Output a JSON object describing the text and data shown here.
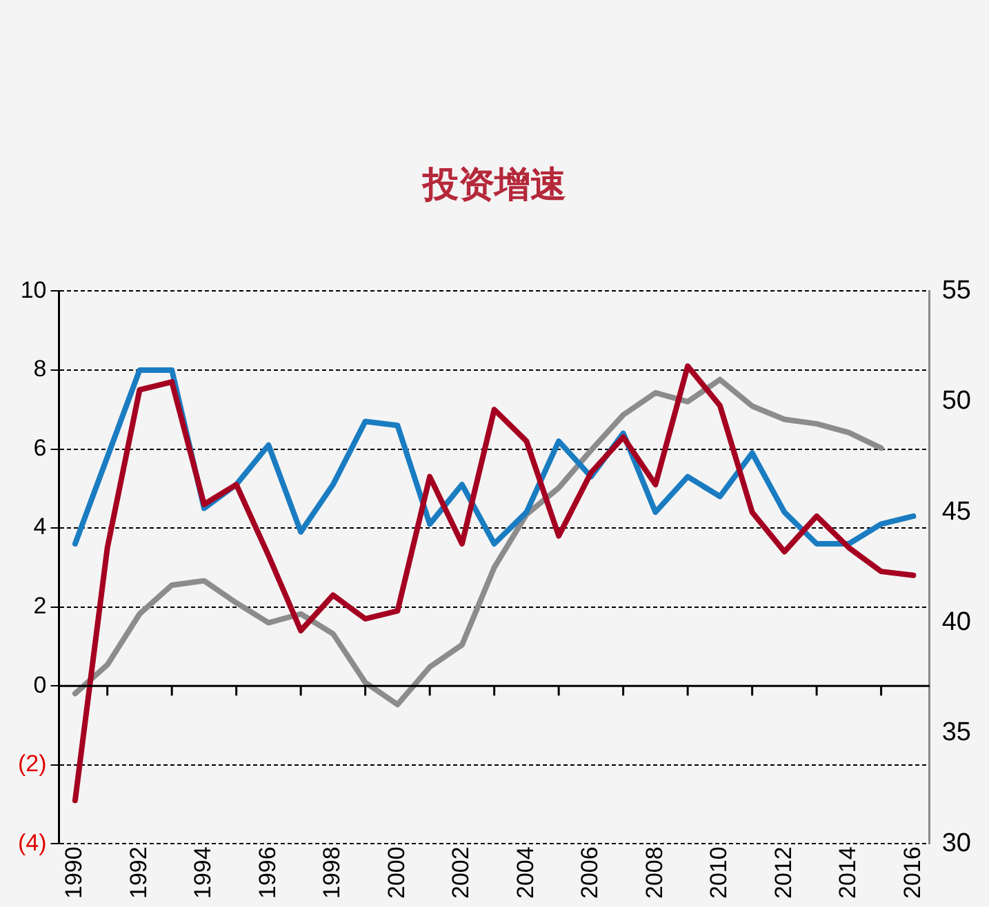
{
  "chart_data": {
    "type": "line",
    "title": "投资增速",
    "categories": [
      "1990",
      null,
      "1992",
      null,
      "1994",
      null,
      "1996",
      null,
      "1998",
      null,
      "2000",
      null,
      "2002",
      null,
      "2004",
      null,
      "2006",
      null,
      "2008",
      null,
      "2010",
      null,
      "2012",
      null,
      "2014",
      null,
      "2016"
    ],
    "series": [
      {
        "color": "#a50021",
        "values": [
          -2.9,
          3.5,
          7.5,
          7.7,
          4.6,
          5.1,
          3.3,
          1.4,
          2.3,
          1.7,
          1.9,
          5.3,
          3.6,
          7.0,
          6.2,
          3.8,
          5.4,
          6.3,
          5.1,
          8.1,
          7.1,
          4.4,
          3.4,
          4.3,
          3.5,
          2.9,
          2.8
        ]
      },
      {
        "color": "#1a7cc1",
        "values": [
          3.6,
          5.8,
          8.0,
          8.0,
          4.5,
          5.1,
          6.1,
          3.9,
          5.1,
          6.7,
          6.6,
          4.1,
          5.1,
          3.6,
          4.4,
          6.2,
          5.3,
          6.4,
          4.4,
          5.3,
          4.8,
          5.9,
          4.4,
          3.6,
          3.6,
          4.1,
          4.3
        ]
      },
      {
        "color": "#8c8c8c",
        "axis": "y2",
        "values": [
          36.8,
          38.1,
          40.4,
          41.7,
          41.9,
          40.9,
          40.0,
          40.4,
          39.5,
          37.3,
          36.3,
          38.0,
          39.0,
          42.5,
          44.9,
          46.1,
          47.8,
          49.4,
          50.4,
          50.0,
          51.0,
          49.8,
          49.2,
          49.0,
          48.6,
          47.9,
          null
        ]
      }
    ],
    "ylim": [
      -4,
      10
    ],
    "yticks": [
      {
        "value": -4,
        "label": "(4)"
      },
      {
        "value": -2,
        "label": "(2)"
      },
      0,
      2,
      4,
      6,
      8,
      10
    ],
    "y2lim": [
      30,
      55
    ],
    "y2ticks": [
      30,
      35,
      40,
      45,
      50,
      55
    ],
    "grid": "y",
    "legend": false,
    "marker": "none",
    "line_style": "solid"
  }
}
